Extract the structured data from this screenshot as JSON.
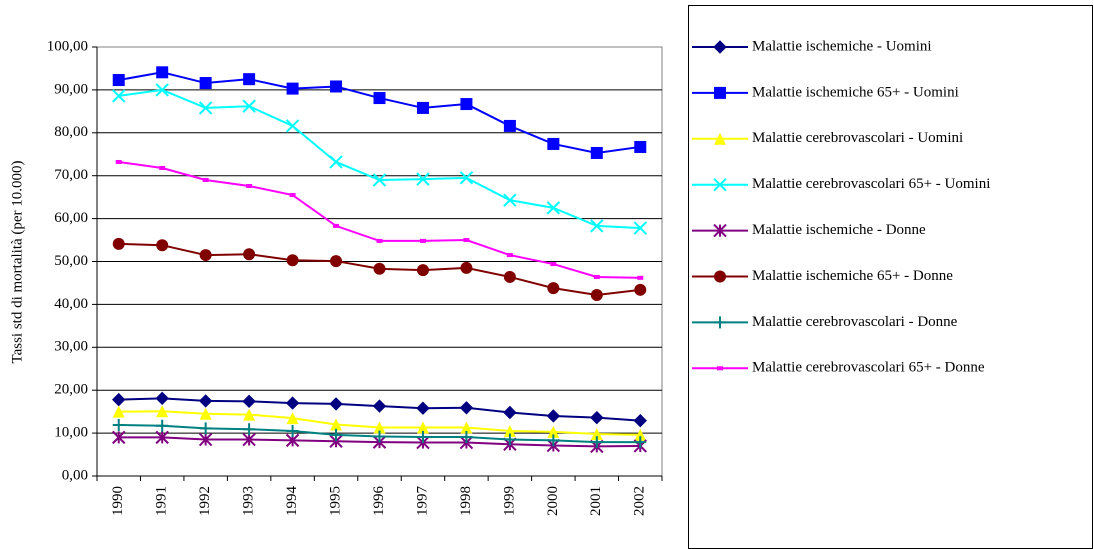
{
  "chart_data": {
    "type": "line",
    "y_label": "Tassi std di mortalità (per 10.000)",
    "categories": [
      "1990",
      "1991",
      "1992",
      "1993",
      "1994",
      "1995",
      "1996",
      "1997",
      "1998",
      "1999",
      "2000",
      "2001",
      "2002"
    ],
    "ylim": [
      0,
      100
    ],
    "yticks": [
      {
        "value": 0,
        "label": "0,00"
      },
      {
        "value": 10,
        "label": "10,00"
      },
      {
        "value": 20,
        "label": "20,00"
      },
      {
        "value": 30,
        "label": "30,00"
      },
      {
        "value": 40,
        "label": "40,00"
      },
      {
        "value": 50,
        "label": "50,00"
      },
      {
        "value": 60,
        "label": "60,00"
      },
      {
        "value": 70,
        "label": "70,00"
      },
      {
        "value": 80,
        "label": "80,00"
      },
      {
        "value": 90,
        "label": "90,00"
      },
      {
        "value": 100,
        "label": "100,00"
      }
    ],
    "grid": true,
    "legend": "right",
    "series": [
      {
        "name": "Malattie ischemiche - Uomini",
        "color": "#000080",
        "marker": "diamond",
        "values": [
          17.8,
          18.1,
          17.5,
          17.4,
          17.0,
          16.8,
          16.3,
          15.8,
          15.9,
          14.8,
          14.0,
          13.6,
          12.9
        ]
      },
      {
        "name": "Malattie ischemiche  65+ - Uomini",
        "color": "#0000ff",
        "marker": "square",
        "values": [
          92.3,
          94.1,
          91.6,
          92.5,
          90.3,
          90.8,
          88.1,
          85.8,
          86.7,
          81.6,
          77.4,
          75.3,
          76.7
        ]
      },
      {
        "name": "Malattie cerebrovascolari - Uomini",
        "color": "#ffff00",
        "marker": "triangle",
        "values": [
          15.0,
          15.1,
          14.5,
          14.3,
          13.5,
          12.0,
          11.3,
          11.3,
          11.3,
          10.5,
          10.3,
          9.8,
          9.6
        ]
      },
      {
        "name": "Malattie cerebrovascolari 65+ - Uomini",
        "color": "#00ffff",
        "marker": "x",
        "values": [
          88.6,
          90.0,
          85.8,
          86.2,
          81.6,
          73.2,
          69.0,
          69.2,
          69.5,
          64.3,
          62.5,
          58.3,
          57.8
        ]
      },
      {
        "name": "Malattie ischemiche - Donne",
        "color": "#800080",
        "marker": "star",
        "values": [
          9.0,
          9.0,
          8.5,
          8.5,
          8.3,
          8.1,
          7.9,
          7.8,
          7.8,
          7.4,
          7.1,
          6.9,
          7.0
        ]
      },
      {
        "name": "Malattie ischemiche  65+ - Donne",
        "color": "#800000",
        "marker": "circle",
        "values": [
          54.1,
          53.8,
          51.5,
          51.7,
          50.3,
          50.1,
          48.3,
          48.0,
          48.5,
          46.4,
          43.8,
          42.2,
          43.4
        ]
      },
      {
        "name": "Malattie cerebrovascolari - Donne",
        "color": "#008080",
        "marker": "plus",
        "values": [
          11.9,
          11.7,
          11.1,
          10.9,
          10.5,
          9.6,
          9.2,
          9.1,
          9.1,
          8.5,
          8.3,
          7.9,
          7.9
        ]
      },
      {
        "name": "Malattie cerebrovascolari 65+ - Donne",
        "color": "#ff00ff",
        "marker": "dash",
        "values": [
          73.2,
          71.8,
          69.0,
          67.6,
          65.5,
          58.3,
          54.8,
          54.8,
          55.0,
          51.5,
          49.4,
          46.4,
          46.2
        ]
      }
    ]
  }
}
